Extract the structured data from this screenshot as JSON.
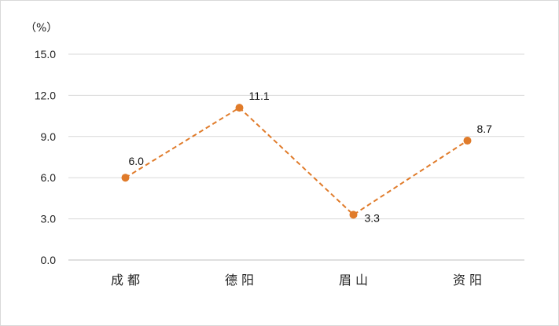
{
  "chart_data": {
    "type": "line",
    "unit_label": "（%）",
    "categories": [
      "成 都",
      "德 阳",
      "眉 山",
      "资 阳"
    ],
    "series": [
      {
        "values": [
          6.0,
          11.1,
          3.3,
          8.7
        ]
      }
    ],
    "data_labels": [
      "6.0",
      "11.1",
      "3.3",
      "8.7"
    ],
    "yticks": [
      "0.0",
      "3.0",
      "6.0",
      "9.0",
      "12.0",
      "15.0"
    ],
    "ylim": [
      0,
      15
    ],
    "grid": true,
    "line_style": "dashed",
    "colors": {
      "series": "#e07b2a",
      "grid": "#d9d9d9",
      "axis": "#bfbfbf"
    }
  }
}
